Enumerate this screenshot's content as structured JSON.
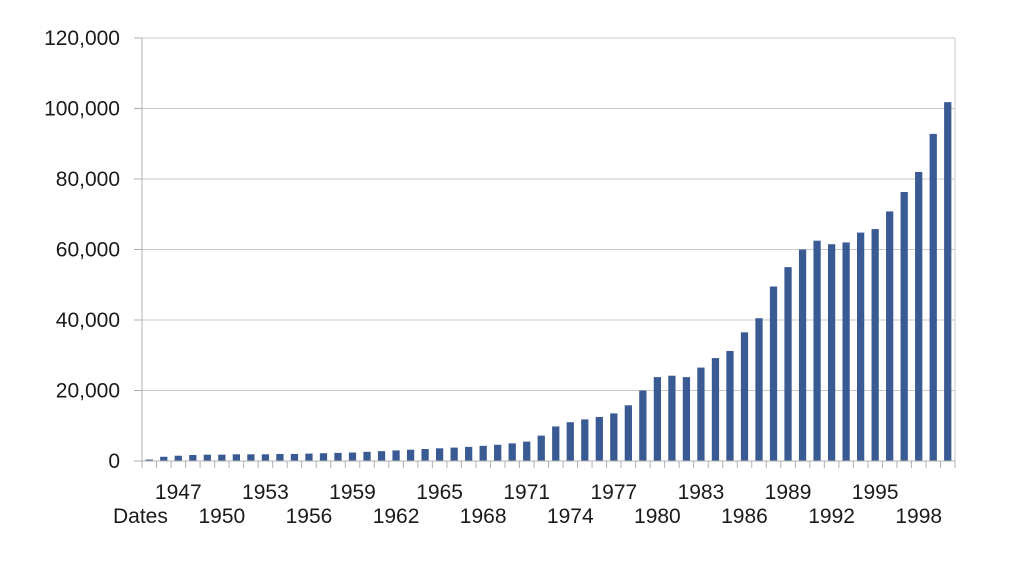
{
  "chart_data": {
    "type": "bar",
    "title": "",
    "xlabel": "Dates",
    "ylabel": "",
    "ylim": [
      0,
      120000
    ],
    "yticks": [
      "0",
      "20,000",
      "40,000",
      "60,000",
      "80,000",
      "100,000",
      "120,000"
    ],
    "ytick_values": [
      0,
      20000,
      40000,
      60000,
      80000,
      100000,
      120000
    ],
    "grid": true,
    "legend": "none",
    "bar_color": "#3a5a93",
    "categories": [
      "1945",
      "1946",
      "1947",
      "1948",
      "1949",
      "1950",
      "1951",
      "1952",
      "1953",
      "1954",
      "1955",
      "1956",
      "1957",
      "1958",
      "1959",
      "1960",
      "1961",
      "1962",
      "1963",
      "1964",
      "1965",
      "1966",
      "1967",
      "1968",
      "1969",
      "1970",
      "1971",
      "1972",
      "1973",
      "1974",
      "1975",
      "1976",
      "1977",
      "1978",
      "1979",
      "1980",
      "1981",
      "1982",
      "1983",
      "1984",
      "1985",
      "1986",
      "1987",
      "1988",
      "1989",
      "1990",
      "1991",
      "1992",
      "1993",
      "1994",
      "1995",
      "1996",
      "1997",
      "1998",
      "1999",
      "2000"
    ],
    "xtick_labels_upper": [
      "1947",
      "1953",
      "1959",
      "1965",
      "1971",
      "1977",
      "1983",
      "1989",
      "1995"
    ],
    "xtick_labels_lower": [
      "1950",
      "1956",
      "1962",
      "1968",
      "1974",
      "1980",
      "1986",
      "1992",
      "1998"
    ],
    "values": [
      400,
      1200,
      1500,
      1700,
      1800,
      1800,
      1900,
      1900,
      1900,
      2000,
      2000,
      2100,
      2200,
      2300,
      2400,
      2600,
      2800,
      3000,
      3200,
      3400,
      3600,
      3800,
      4000,
      4300,
      4600,
      5000,
      5500,
      7200,
      9800,
      11000,
      11800,
      12500,
      13500,
      15800,
      20000,
      23800,
      24200,
      23800,
      26500,
      29200,
      31200,
      36500,
      40500,
      49500,
      55000,
      60000,
      62500,
      61500,
      62000,
      64800,
      65800,
      70800,
      76300,
      82000,
      92800,
      101800
    ]
  }
}
